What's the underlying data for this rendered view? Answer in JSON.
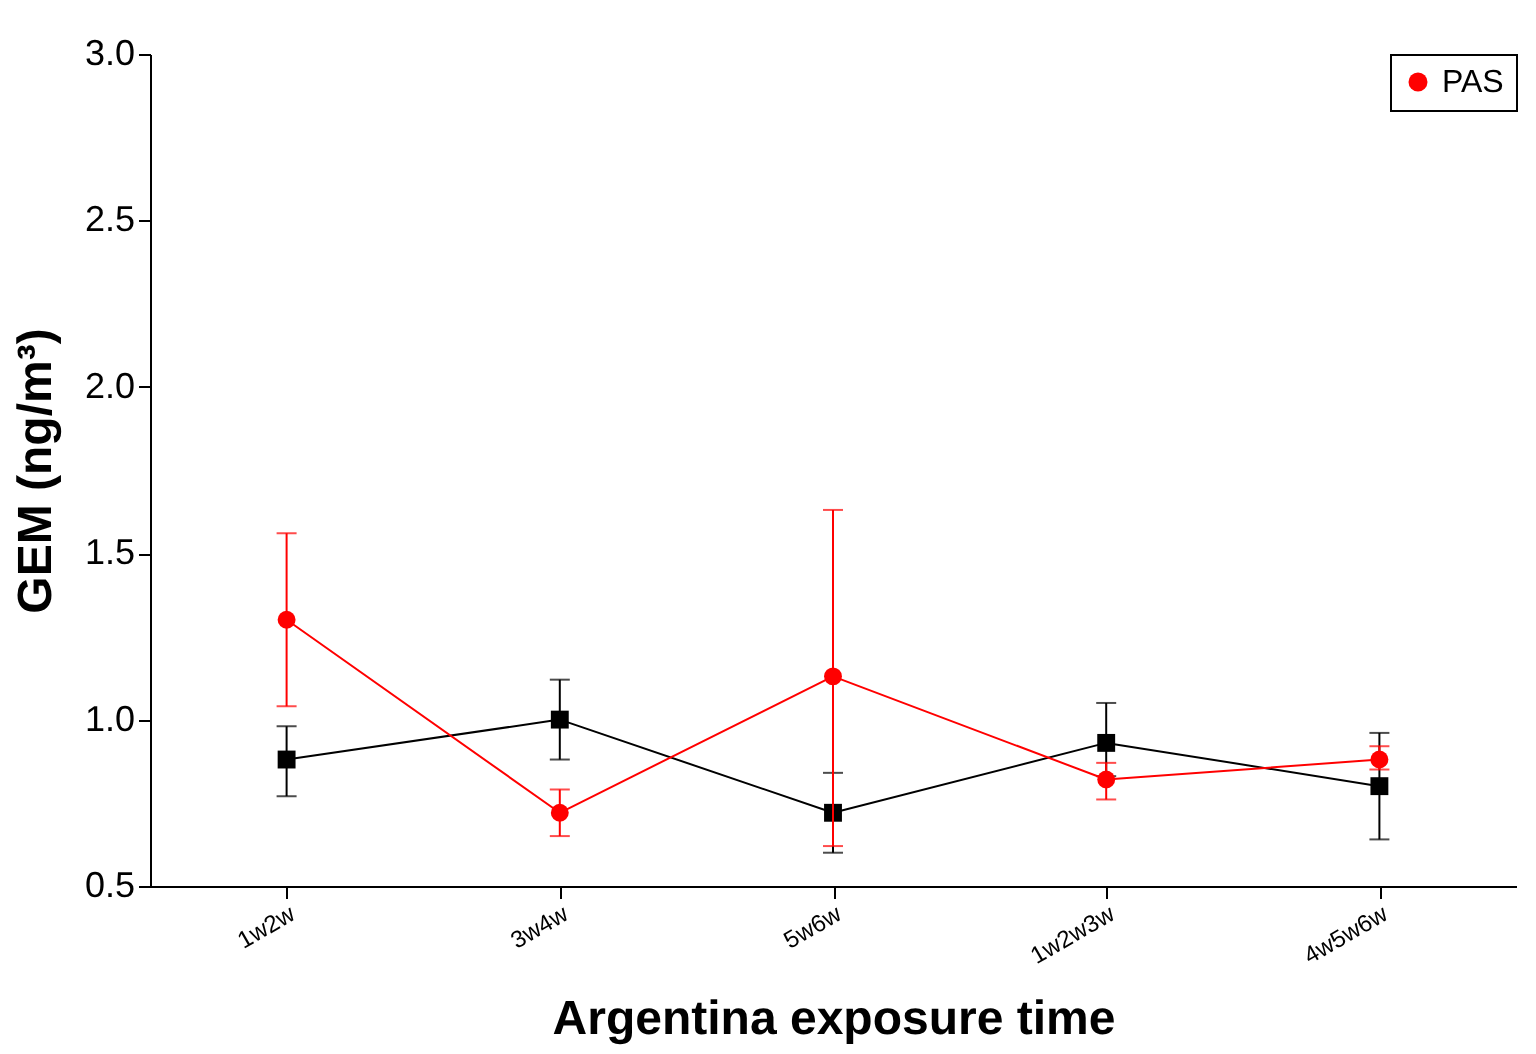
{
  "chart_data": {
    "type": "line",
    "xlabel": "Argentina exposure time",
    "ylabel": "GEM (ng/m³)",
    "categories": [
      "1w2w",
      "3w4w",
      "5w6w",
      "1w2w3w",
      "4w5w6w"
    ],
    "series": [
      {
        "color": "#000000",
        "marker": "square",
        "values": [
          0.88,
          1.0,
          0.72,
          0.93,
          0.8
        ],
        "errors": [
          [
            0.77,
            0.98
          ],
          [
            0.88,
            1.12
          ],
          [
            0.6,
            0.84
          ],
          [
            0.83,
            1.05
          ],
          [
            0.64,
            0.96
          ]
        ]
      },
      {
        "name": "PAS",
        "color": "#ff0000",
        "marker": "circle",
        "values": [
          1.3,
          0.72,
          1.13,
          0.82,
          0.88
        ],
        "errors": [
          [
            1.04,
            1.56
          ],
          [
            0.65,
            0.79
          ],
          [
            0.62,
            1.63
          ],
          [
            0.76,
            0.87
          ],
          [
            0.85,
            0.92
          ]
        ]
      }
    ],
    "ylim": [
      0.5,
      3.0
    ],
    "yticks": [
      0.5,
      {
        "value": 1,
        "label": "1.0"
      },
      1.5,
      {
        "value": 2,
        "label": "2.0"
      },
      2.5,
      {
        "value": 3,
        "label": "3.0"
      }
    ],
    "grid": false,
    "legend": "top right"
  }
}
